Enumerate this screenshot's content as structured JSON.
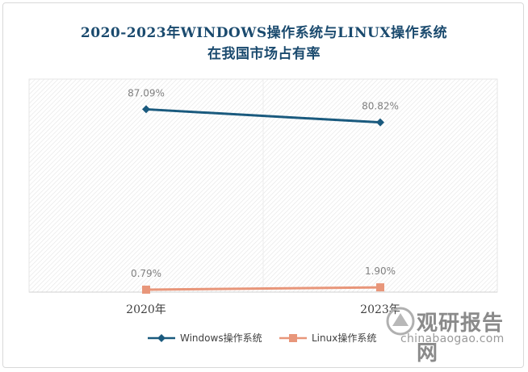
{
  "chart_data": {
    "type": "line",
    "title_line1": "2020-2023年WINDOWS操作系统与LINUX操作系统",
    "title_line2": "在我国市场占有率",
    "categories": [
      "2020年",
      "2023年"
    ],
    "series": [
      {
        "name": "Windows操作系统",
        "values": [
          87.09,
          80.82
        ],
        "labels": [
          "87.09%",
          "80.82%"
        ],
        "color": "#1a5a7e",
        "marker": "diamond"
      },
      {
        "name": "Linux操作系统",
        "values": [
          0.79,
          1.9
        ],
        "labels": [
          "0.79%",
          "1.90%"
        ],
        "color": "#e8967a",
        "marker": "square"
      }
    ],
    "ylim": [
      0,
      100
    ],
    "xlabel": "",
    "ylabel": "",
    "grid": false,
    "legend": "bottom"
  },
  "watermark": {
    "text_cn": "观研报告网",
    "text_en": "chinabaogao.com"
  },
  "colors": {
    "title": "#1a4a6e",
    "label": "#7f7f7f",
    "plot_hatch": "#e6e6e6"
  }
}
